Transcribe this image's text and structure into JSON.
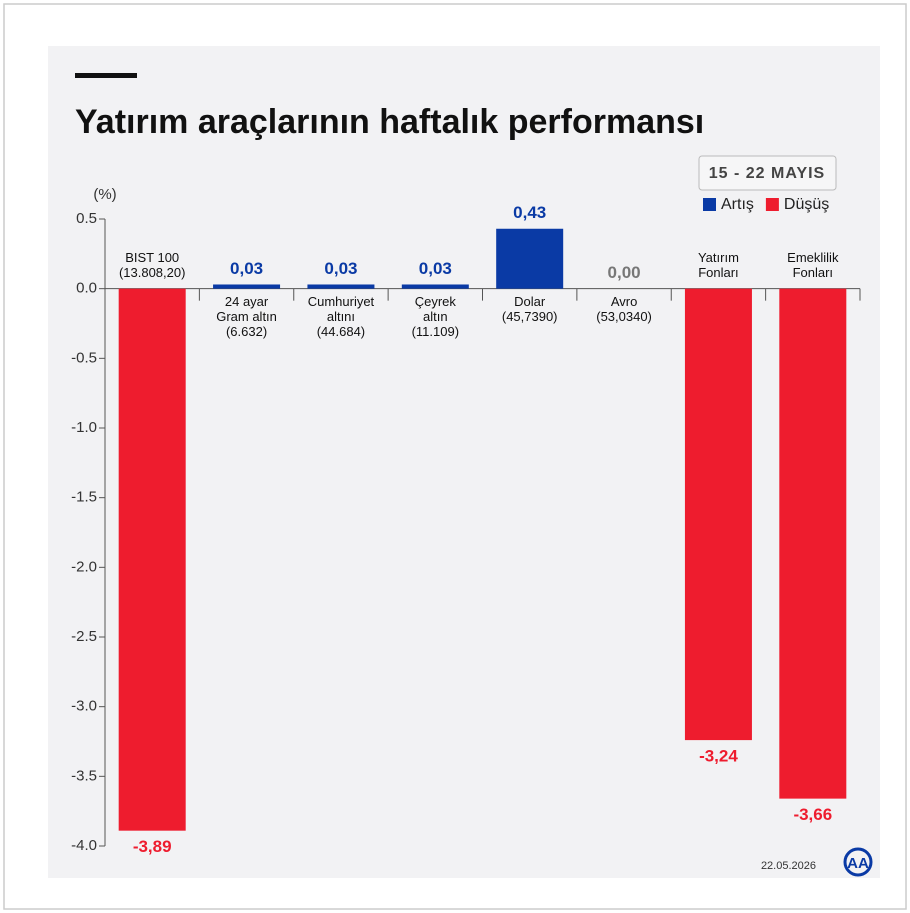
{
  "chart_data": {
    "type": "bar",
    "title": "Yatırım araçlarının haftalık performansı",
    "period": "15 - 22 MAYIS",
    "unit": "(%)",
    "date": "22.05.2026",
    "legend": [
      {
        "name": "Artış",
        "color": "#0a3aa5"
      },
      {
        "name": "Düşüş",
        "color": "#ee1c2e"
      }
    ],
    "categories": [
      [
        "BIST 100",
        "(13.808,20)"
      ],
      [
        "24 ayar",
        "Gram altın",
        "(6.632)"
      ],
      [
        "Cumhuriyet",
        "altını",
        "(44.684)"
      ],
      [
        "Çeyrek",
        "altın",
        "(11.109)"
      ],
      [
        "Dolar",
        "(45,7390)"
      ],
      [
        "Avro",
        "(53,0340)"
      ],
      [
        "Yatırım",
        "Fonları"
      ],
      [
        "Emeklilik",
        "Fonları"
      ]
    ],
    "values": [
      -3.89,
      0.03,
      0.03,
      0.03,
      0.43,
      0.0,
      -3.24,
      -3.66
    ],
    "value_labels": [
      "-3,89",
      "0,03",
      "0,03",
      "0,03",
      "0,43",
      "0,00",
      "-3,24",
      "-3,66"
    ],
    "colors": [
      "#ee1c2e",
      "#0a3aa5",
      "#0a3aa5",
      "#0a3aa5",
      "#0a3aa5",
      "#777777",
      "#ee1c2e",
      "#ee1c2e"
    ],
    "ylim": [
      -4,
      0.5
    ],
    "yticks": [
      0.5,
      {
        "value": 0,
        "label": "0.0"
      },
      -0.5,
      {
        "value": -1,
        "label": "-1.0"
      },
      -1.5,
      {
        "value": -2,
        "label": "-2.0"
      },
      -2.5,
      {
        "value": -3,
        "label": "-3.0"
      },
      -3.5,
      {
        "value": -4,
        "label": "-4.0"
      }
    ]
  }
}
